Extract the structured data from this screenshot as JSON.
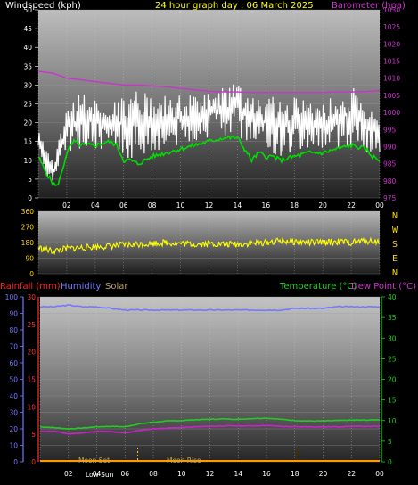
{
  "header": {
    "left": "Windspeed (kph)",
    "center": "24 hour graph day : 06 March 2025",
    "right": "Barometer (hpa)"
  },
  "mid_header": {
    "rainfall": "Rainfall (mm)",
    "humidity": "Humidity",
    "solar": "Solar",
    "temperature": "Temperature (°C)",
    "dewpoint": "Dew Point (°C)"
  },
  "colors": {
    "wind": "#ffffff",
    "gust": "#ffffff",
    "average": "#00dd00",
    "barometer": "#cc33cc",
    "direction": "#ffff00",
    "humidity": "#7777ff",
    "temperature": "#22cc22",
    "dewpoint": "#cc22cc",
    "solar": "#ff9900",
    "rainfall": "#ff2222"
  },
  "chart_data": [
    {
      "type": "line",
      "name": "wind-barometer",
      "x_ticks": [
        "02",
        "04",
        "06",
        "08",
        "10",
        "12",
        "14",
        "16",
        "18",
        "20",
        "22",
        "00"
      ],
      "y_left_ticks": [
        "0",
        "5",
        "10",
        "15",
        "20",
        "25",
        "30",
        "35",
        "40",
        "45",
        "50"
      ],
      "y_left_lim": [
        0,
        50
      ],
      "y_right_ticks": [
        "975",
        "980",
        "985",
        "990",
        "995",
        "1000",
        "1005",
        "1010",
        "1015",
        "1020",
        "1025",
        "1030"
      ],
      "y_right_lim": [
        975,
        1030
      ],
      "series": [
        {
          "key": "gust_max",
          "hours": [
            0,
            1,
            2,
            3,
            4,
            5,
            6,
            7,
            8,
            9,
            10,
            11,
            12,
            13,
            14,
            15,
            16,
            17,
            18,
            19,
            20,
            21,
            22,
            23,
            24
          ],
          "values": [
            18,
            10,
            24,
            28,
            26,
            24,
            28,
            29,
            28,
            27,
            28,
            27,
            28,
            30,
            31,
            29,
            27,
            27,
            27,
            26,
            26,
            28,
            30,
            25,
            22
          ]
        },
        {
          "key": "gust_min",
          "hours": [
            0,
            1,
            2,
            3,
            4,
            5,
            6,
            7,
            8,
            9,
            10,
            11,
            12,
            13,
            14,
            15,
            16,
            17,
            18,
            19,
            20,
            21,
            22,
            23,
            24
          ],
          "values": [
            10,
            3,
            12,
            13,
            13,
            12,
            10,
            11,
            12,
            13,
            14,
            15,
            15,
            16,
            16,
            14,
            12,
            11,
            12,
            13,
            13,
            13,
            13,
            12,
            12
          ]
        },
        {
          "key": "average",
          "hours": [
            0,
            0.5,
            1,
            1.3,
            1.6,
            2,
            2.5,
            3,
            4,
            5,
            5.5,
            6,
            6.5,
            7,
            8,
            9,
            10,
            11,
            12,
            13,
            14,
            14.5,
            15,
            15.5,
            16,
            16.5,
            17,
            18,
            19,
            20,
            21,
            22,
            23,
            23.5,
            24
          ],
          "values": [
            11,
            7,
            4,
            3,
            6,
            12,
            15,
            14,
            14,
            15,
            14,
            10,
            10,
            9,
            11,
            12,
            13,
            14,
            15,
            16,
            16,
            13,
            10,
            12,
            11,
            11,
            10,
            11,
            12,
            12,
            13,
            14,
            13,
            11,
            10
          ]
        },
        {
          "key": "barometer",
          "hours": [
            0,
            1,
            2,
            3,
            4,
            5,
            6,
            7,
            8,
            9,
            10,
            11,
            12,
            13,
            14,
            15,
            16,
            17,
            18,
            19,
            20,
            21,
            22,
            23,
            24
          ],
          "values": [
            1012,
            1011.5,
            1010,
            1009.5,
            1009,
            1008.5,
            1008,
            1008,
            1007.8,
            1007.5,
            1007,
            1006.6,
            1006.2,
            1006,
            1006,
            1005.8,
            1005.8,
            1005.8,
            1005.8,
            1005.8,
            1005.8,
            1006,
            1006,
            1006.1,
            1006.4
          ]
        }
      ]
    },
    {
      "type": "line",
      "name": "wind-direction",
      "y_ticks": [
        "0",
        "90",
        "180",
        "270",
        "360"
      ],
      "y_lim": [
        0,
        360
      ],
      "right_labels": [
        "N",
        "W",
        "S",
        "E",
        "N"
      ],
      "series": [
        {
          "key": "direction",
          "hours": [
            0,
            1,
            2,
            3,
            4,
            5,
            6,
            7,
            8,
            9,
            10,
            11,
            12,
            13,
            14,
            15,
            16,
            17,
            18,
            19,
            20,
            21,
            22,
            23,
            24
          ],
          "values": [
            150,
            130,
            145,
            150,
            155,
            160,
            165,
            170,
            175,
            180,
            175,
            170,
            175,
            170,
            170,
            175,
            180,
            190,
            185,
            180,
            180,
            185,
            180,
            190,
            185
          ]
        }
      ]
    },
    {
      "type": "line",
      "name": "temp-humidity",
      "y_left_ticks": [
        "0",
        "10",
        "20",
        "30",
        "40",
        "50",
        "60",
        "70",
        "80",
        "90",
        "100"
      ],
      "y_left_lim": [
        0,
        100
      ],
      "y_rain_ticks": [
        "0",
        "5",
        "10",
        "15",
        "20",
        "25",
        "30"
      ],
      "y_rain_lim": [
        0,
        30
      ],
      "y_right_ticks": [
        "0",
        "5",
        "10",
        "15",
        "20",
        "25",
        "30",
        "35",
        "40"
      ],
      "y_right_lim": [
        0,
        40
      ],
      "annotations": [
        "Moon Set",
        "Low Sun",
        "Moon Rise"
      ],
      "series": [
        {
          "key": "humidity",
          "hours": [
            0,
            1,
            2,
            3,
            4,
            5,
            6,
            7,
            8,
            9,
            10,
            11,
            12,
            13,
            14,
            15,
            16,
            17,
            18,
            19,
            20,
            21,
            22,
            23,
            24
          ],
          "values": [
            94,
            94,
            95,
            94,
            94,
            93,
            92,
            92,
            92,
            92,
            92,
            92,
            92,
            92,
            92,
            92,
            92,
            92,
            93,
            93,
            93,
            94,
            94,
            94,
            94
          ]
        },
        {
          "key": "temperature",
          "hours": [
            0,
            1,
            2,
            3,
            4,
            5,
            6,
            7,
            8,
            9,
            10,
            11,
            12,
            13,
            14,
            15,
            16,
            17,
            18,
            19,
            20,
            21,
            22,
            23,
            24
          ],
          "values": [
            8.5,
            8.3,
            8.0,
            8.2,
            8.5,
            8.6,
            8.5,
            9.2,
            9.6,
            9.9,
            10.0,
            10.2,
            10.3,
            10.4,
            10.3,
            10.5,
            10.6,
            10.3,
            10.0,
            9.9,
            9.9,
            10.0,
            10.1,
            10.1,
            10.2
          ]
        },
        {
          "key": "dewpoint",
          "hours": [
            0,
            1,
            2,
            3,
            4,
            5,
            6,
            7,
            8,
            9,
            10,
            11,
            12,
            13,
            14,
            15,
            16,
            17,
            18,
            19,
            20,
            21,
            22,
            23,
            24
          ],
          "values": [
            7.4,
            7.4,
            6.8,
            7.0,
            7.4,
            7.3,
            7.0,
            7.6,
            8.0,
            8.2,
            8.3,
            8.5,
            8.6,
            8.7,
            8.7,
            8.7,
            8.8,
            8.6,
            8.5,
            8.5,
            8.5,
            8.5,
            8.6,
            8.6,
            8.6
          ]
        },
        {
          "key": "solar",
          "hours": [
            0,
            24
          ],
          "values": [
            0,
            0
          ]
        },
        {
          "key": "rainfall",
          "hours": [
            0,
            24
          ],
          "values": [
            0,
            0
          ]
        }
      ]
    }
  ]
}
